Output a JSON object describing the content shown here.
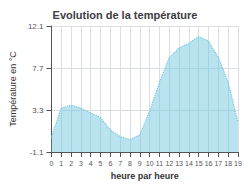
{
  "chart_data": {
    "type": "area",
    "title": "Evolution de la température",
    "x_label": "heure par heure",
    "y_label": "Température en °C",
    "x": [
      0,
      1,
      2,
      3,
      4,
      5,
      6,
      7,
      8,
      9,
      10,
      11,
      12,
      13,
      14,
      15,
      16,
      17,
      18,
      19
    ],
    "values": [
      0.5,
      3.5,
      3.8,
      3.5,
      3.0,
      2.5,
      1.2,
      0.5,
      0.2,
      0.7,
      3.2,
      6.2,
      8.8,
      9.8,
      10.3,
      11.0,
      10.5,
      8.8,
      6.2,
      2.0
    ],
    "color": "#72c8e0",
    "line_style": "dotted",
    "xlim": [
      0,
      19
    ],
    "xticks": [
      0,
      1,
      2,
      3,
      4,
      5,
      6,
      7,
      8,
      9,
      10,
      11,
      12,
      13,
      14,
      15,
      16,
      17,
      18,
      19
    ],
    "ylim": [
      -1.1,
      12.1
    ],
    "yticks": [
      -1.1,
      3.3,
      7.7,
      12.1
    ],
    "grid": true
  }
}
